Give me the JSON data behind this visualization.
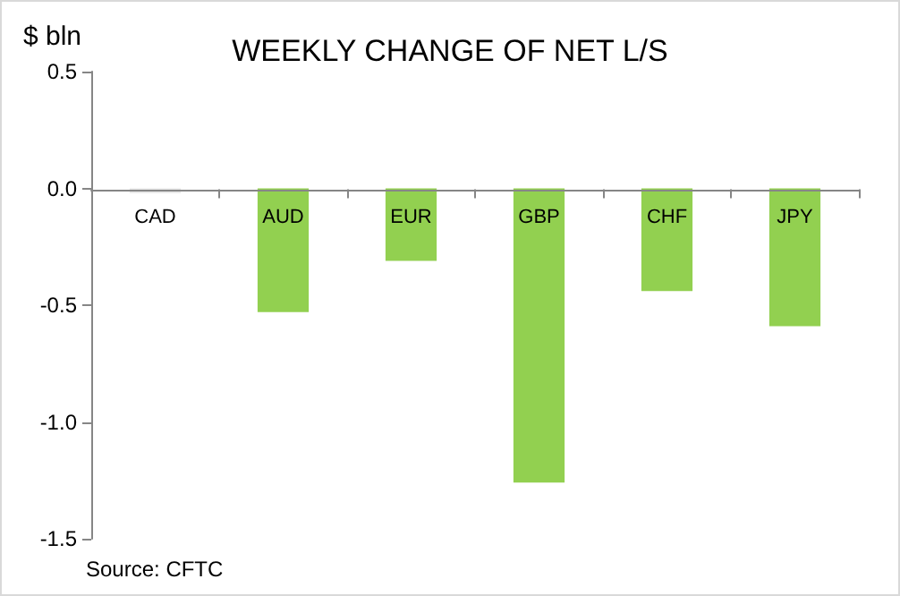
{
  "chart_data": {
    "type": "bar",
    "title": "WEEKLY CHANGE OF NET L/S",
    "ylabel": "$ bln",
    "annotations": [
      "Source: CFTC"
    ],
    "categories": [
      "CAD",
      "AUD",
      "EUR",
      "GBP",
      "CHF",
      "JPY"
    ],
    "values": [
      -0.02,
      -0.53,
      -0.31,
      -1.26,
      -0.44,
      -0.59
    ],
    "colors": [
      "#e6e6e6",
      "#92d050",
      "#92d050",
      "#92d050",
      "#92d050",
      "#92d050"
    ],
    "ylim": [
      -1.5,
      0.5
    ],
    "yticks": [
      {
        "value": 0.5,
        "label": "0.5"
      },
      {
        "value": 0,
        "label": "0.0"
      },
      {
        "value": -0.5,
        "label": "-0.5"
      },
      {
        "value": -1,
        "label": "-1.0"
      },
      {
        "value": -1.5,
        "label": "-1.5"
      }
    ],
    "tick_labels": true
  }
}
